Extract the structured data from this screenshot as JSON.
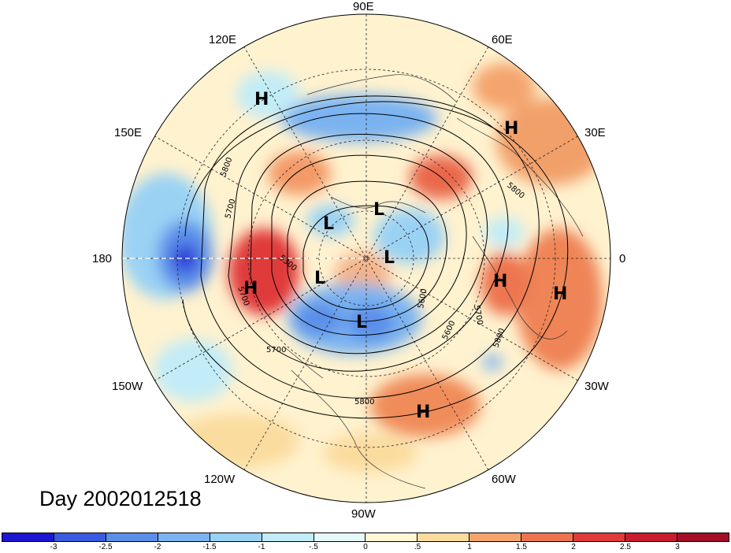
{
  "map": {
    "day_label": "Day 2002012518",
    "longitude_labels": [
      "90E",
      "60E",
      "30E",
      "0",
      "30W",
      "60W",
      "90W",
      "120W",
      "150W",
      "180",
      "150E",
      "120E"
    ],
    "contour_labels": [
      "5800",
      "5700",
      "5300",
      "5700",
      "5600",
      "5800",
      "5700",
      "5800",
      "5600",
      "5700",
      "5800"
    ],
    "highs_lows": [
      "H",
      "H",
      "H",
      "H",
      "H",
      "H",
      "L",
      "L",
      "L",
      "L",
      "L"
    ],
    "colorbar": {
      "ticks": [
        "-3",
        "-2.5",
        "-2",
        "-1.5",
        "-1",
        "-.5",
        "0",
        ".5",
        "1",
        "1.5",
        "2",
        "2.5",
        "3"
      ],
      "colors": [
        "#1e17d1",
        "#3b5be0",
        "#5a8ee9",
        "#7ab3f0",
        "#9ad2f4",
        "#c2ecf7",
        "#e8f9fb",
        "#fff6d5",
        "#fbdc9f",
        "#f4a46d",
        "#ed7450",
        "#e03a3a",
        "#c91c2c",
        "#a30f26"
      ]
    }
  }
}
